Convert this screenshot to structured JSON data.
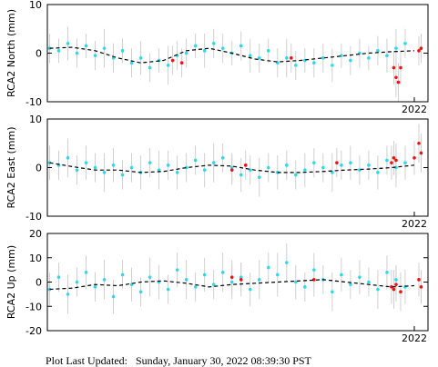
{
  "chart_data": [
    {
      "type": "scatter",
      "ylabel": "RCA2 North (mm)",
      "xlim": [
        2013.95,
        2022.3
      ],
      "xticks": [
        2022
      ],
      "ylim": [
        -10,
        10
      ],
      "yticks": [
        -10,
        0,
        10
      ],
      "error_color": "#c4c4c4",
      "series": [
        {
          "mode": "markers",
          "color": "#22ddee",
          "x": [
            2014.0,
            2014.2,
            2014.4,
            2014.6,
            2014.8,
            2015.0,
            2015.2,
            2015.4,
            2015.6,
            2015.8,
            2016.0,
            2016.2,
            2016.4,
            2016.6,
            2016.8,
            2017.0,
            2017.2,
            2017.4,
            2017.6,
            2017.8,
            2018.0,
            2018.2,
            2018.4,
            2018.6,
            2018.8,
            2019.0,
            2019.2,
            2019.4,
            2019.6,
            2019.8,
            2020.0,
            2020.2,
            2020.4,
            2020.6,
            2020.8,
            2021.0,
            2021.2,
            2021.4,
            2021.6,
            2021.8
          ],
          "values": [
            1,
            0.5,
            2,
            0,
            1.5,
            -0.5,
            1,
            -1,
            0.5,
            -2,
            -1,
            -3,
            -1.5,
            -2.5,
            -0.5,
            0,
            1.5,
            0.5,
            2,
            1,
            0,
            1.5,
            -0.5,
            -1,
            0.5,
            -2,
            -1,
            -2.5,
            -1.5,
            -2,
            -1,
            -2.5,
            -0.5,
            -1.5,
            0,
            -1,
            0.5,
            -0.5,
            1,
            2
          ],
          "errors": [
            3,
            2.5,
            3.5,
            3,
            2.5,
            3,
            4,
            3,
            2.5,
            3,
            3.5,
            3,
            2.5,
            4,
            3,
            3,
            2.5,
            3.5,
            3,
            3,
            2.5,
            3,
            3.5,
            3,
            2.5,
            3,
            4,
            3,
            2.5,
            3,
            3,
            3.5,
            2.5,
            3,
            3,
            2.5,
            3,
            3.5,
            4,
            3
          ]
        },
        {
          "mode": "markers",
          "color": "#ee1111",
          "x": [
            2016.7,
            2016.9,
            2019.3,
            2021.55,
            2021.6,
            2021.65,
            2021.7,
            2022.1,
            2022.15
          ],
          "values": [
            -1.5,
            -2,
            -1,
            -3,
            -5,
            -6,
            -3,
            0.5,
            1
          ],
          "errors": [
            3,
            3,
            3,
            3.5,
            4,
            4,
            3.5,
            3,
            3
          ]
        },
        {
          "mode": "line",
          "color": "#000000",
          "x": [
            2014,
            2014.5,
            2015,
            2015.5,
            2016,
            2016.5,
            2017,
            2017.5,
            2018,
            2018.5,
            2019,
            2019.5,
            2020,
            2020.5,
            2021,
            2021.5,
            2022
          ],
          "values": [
            1,
            1.2,
            0.5,
            -1,
            -2,
            -1.5,
            0.5,
            1,
            0,
            -1.2,
            -1.8,
            -1.5,
            -1,
            -0.5,
            0,
            0.3,
            0.5
          ]
        }
      ]
    },
    {
      "type": "scatter",
      "ylabel": "RCA2 East (mm)",
      "xlim": [
        2013.95,
        2022.3
      ],
      "xticks": [
        2022
      ],
      "ylim": [
        -10,
        10
      ],
      "yticks": [
        -10,
        0,
        10
      ],
      "error_color": "#c4c4c4",
      "series": [
        {
          "mode": "markers",
          "color": "#22ddee",
          "x": [
            2014.0,
            2014.2,
            2014.4,
            2014.6,
            2014.8,
            2015.0,
            2015.2,
            2015.4,
            2015.6,
            2015.8,
            2016.0,
            2016.2,
            2016.4,
            2016.6,
            2016.8,
            2017.0,
            2017.2,
            2017.4,
            2017.6,
            2017.8,
            2018.0,
            2018.2,
            2018.4,
            2018.6,
            2018.8,
            2019.0,
            2019.2,
            2019.4,
            2019.6,
            2019.8,
            2020.0,
            2020.2,
            2020.4,
            2020.6,
            2020.8,
            2021.0,
            2021.2,
            2021.4,
            2021.6,
            2021.8
          ],
          "values": [
            1,
            0.5,
            2,
            -0.5,
            1,
            0,
            -1,
            0.5,
            -1.5,
            0,
            -1,
            1,
            -0.5,
            0.5,
            -1,
            0,
            1.5,
            -0.5,
            1,
            2,
            0,
            -1.5,
            -0.5,
            -2,
            0,
            -1,
            0.5,
            -1.5,
            -0.5,
            1,
            0,
            -1,
            0.5,
            1,
            -0.5,
            0.5,
            -1,
            1.5,
            0,
            1
          ],
          "errors": [
            3.5,
            3,
            4,
            3,
            3.5,
            3,
            4,
            3.5,
            3,
            3,
            3.5,
            3,
            4,
            3,
            3.5,
            3,
            3,
            3.5,
            4,
            3,
            3,
            3.5,
            3,
            4,
            3,
            3.5,
            3,
            3,
            3.5,
            3,
            3,
            4,
            3,
            3.5,
            3,
            3,
            3.5,
            3,
            4,
            3.5
          ]
        },
        {
          "mode": "markers",
          "color": "#ee1111",
          "x": [
            2018.0,
            2018.3,
            2020.3,
            2021.5,
            2021.55,
            2021.6,
            2022.0,
            2022.1,
            2022.15
          ],
          "values": [
            -0.5,
            0.5,
            1,
            1,
            2,
            1.5,
            2,
            5,
            3
          ],
          "errors": [
            3,
            3,
            3,
            3.5,
            3.5,
            3.5,
            3.5,
            4,
            4
          ]
        },
        {
          "mode": "line",
          "color": "#000000",
          "x": [
            2014,
            2014.5,
            2015,
            2015.5,
            2016,
            2016.5,
            2017,
            2017.5,
            2018,
            2018.5,
            2019,
            2019.5,
            2020,
            2020.5,
            2021,
            2021.5,
            2022
          ],
          "values": [
            1,
            0.2,
            -0.5,
            -0.5,
            -1,
            -0.8,
            0,
            0.5,
            0.3,
            -0.5,
            -1,
            -1,
            -0.8,
            -0.5,
            -0.3,
            0,
            0.5
          ]
        }
      ]
    },
    {
      "type": "scatter",
      "ylabel": "RCA2 Up (mm)",
      "xlim": [
        2013.95,
        2022.3
      ],
      "xticks": [
        2022
      ],
      "ylim": [
        -20,
        20
      ],
      "yticks": [
        -20,
        -10,
        0,
        10,
        20
      ],
      "error_color": "#c4c4c4",
      "series": [
        {
          "mode": "markers",
          "color": "#22ddee",
          "x": [
            2014.0,
            2014.2,
            2014.4,
            2014.6,
            2014.8,
            2015.0,
            2015.2,
            2015.4,
            2015.6,
            2015.8,
            2016.0,
            2016.2,
            2016.4,
            2016.6,
            2016.8,
            2017.0,
            2017.2,
            2017.4,
            2017.6,
            2017.8,
            2018.0,
            2018.2,
            2018.4,
            2018.6,
            2018.8,
            2019.0,
            2019.2,
            2019.4,
            2019.6,
            2019.8,
            2020.0,
            2020.2,
            2020.4,
            2020.6,
            2020.8,
            2021.0,
            2021.2,
            2021.4,
            2021.6,
            2021.8
          ],
          "values": [
            -3,
            2,
            -5,
            0,
            4,
            -2,
            1,
            -6,
            3,
            -1,
            -4,
            2,
            0,
            -3,
            5,
            1,
            -2,
            3,
            -1,
            4,
            0,
            2,
            -3,
            1,
            6,
            3,
            8,
            0,
            -2,
            5,
            1,
            -4,
            3,
            -1,
            2,
            0,
            -3,
            4,
            1,
            -2
          ],
          "errors": [
            7,
            6,
            8,
            6,
            7,
            6,
            8,
            7,
            6,
            7,
            6,
            8,
            7,
            6,
            7,
            8,
            6,
            7,
            6,
            8,
            7,
            6,
            7,
            8,
            6,
            9,
            8,
            7,
            6,
            7,
            6,
            8,
            7,
            6,
            7,
            6,
            8,
            7,
            6,
            7
          ]
        },
        {
          "mode": "markers",
          "color": "#ee1111",
          "x": [
            2018.0,
            2018.2,
            2019.8,
            2021.5,
            2021.55,
            2021.6,
            2021.7,
            2022.1,
            2022.15
          ],
          "values": [
            2,
            1,
            1,
            -2,
            -3,
            -1,
            -4,
            1,
            -2
          ],
          "errors": [
            7,
            7,
            7,
            7,
            8,
            7,
            8,
            7,
            7
          ]
        },
        {
          "mode": "line",
          "color": "#000000",
          "x": [
            2014,
            2014.5,
            2015,
            2015.5,
            2016,
            2016.5,
            2017,
            2017.5,
            2018,
            2018.5,
            2019,
            2019.5,
            2020,
            2020.5,
            2021,
            2021.5,
            2022
          ],
          "values": [
            -3,
            -2.5,
            -1,
            -1.5,
            0,
            0.5,
            -0.5,
            -2,
            -1,
            -0.5,
            0,
            0.5,
            1,
            0,
            -1,
            -2,
            -1.5
          ]
        }
      ]
    }
  ],
  "footer": "Plot Last Updated:   Sunday, January 30, 2022 08:39:30 PST"
}
